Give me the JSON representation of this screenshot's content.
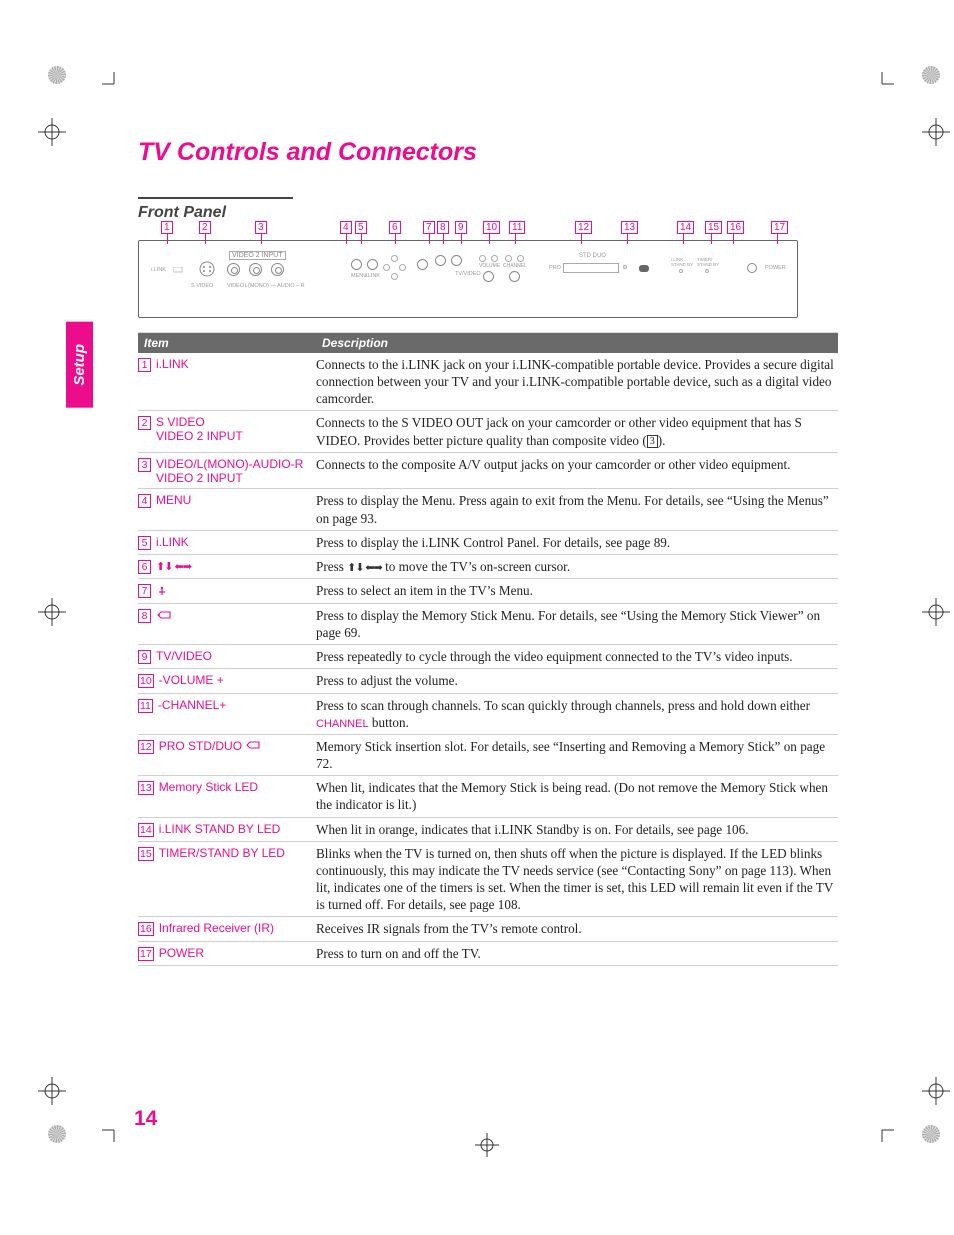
{
  "colors": {
    "accent": "#ec0d8c",
    "header_bg": "#6a6a6a",
    "text": "#222222",
    "rule": "#cfcfcf"
  },
  "page_number": "14",
  "title": "TV Controls and Connectors",
  "section": "Front Panel",
  "side_tab": "Setup",
  "table_header": {
    "item": "Item",
    "desc": "Description"
  },
  "diagram": {
    "video2_input": "VIDEO 2 INPUT",
    "ilink": "i.LINK",
    "svideo": "S VIDEO",
    "video": "VIDEO",
    "audio": "L(MONO) — AUDIO – R",
    "menu": "MENU",
    "ilink2": "i.LINK",
    "tv_video": "TV/VIDEO",
    "volume": "VOLUME",
    "channel": "CHANNEL",
    "pro": "PRO",
    "std_duo": "STD DUO",
    "link_sb": "i.LINK\nSTAND BY",
    "timer_sb": "TIMER/\nSTAND BY",
    "power": "POWER"
  },
  "callouts": [
    "1",
    "2",
    "3",
    "4",
    "5",
    "6",
    "7",
    "8",
    "9",
    "10",
    "11",
    "12",
    "13",
    "14",
    "15",
    "16",
    "17"
  ],
  "rows": [
    {
      "num": "1",
      "label": "i.LINK",
      "desc": "Connects to the i.LINK jack on your i.LINK-compatible portable device. Provides a secure digital connection between your TV and your i.LINK-compatible portable device, such as a digital video camcorder."
    },
    {
      "num": "2",
      "label": "S VIDEO\nVIDEO 2 INPUT",
      "desc_html": "Connects to the S VIDEO OUT jack on your camcorder or other video equipment that has S VIDEO. Provides better picture quality than composite video (<span class='num-box-inline'>3</span>)."
    },
    {
      "num": "3",
      "label": "VIDEO/L(MONO)-AUDIO-R\nVIDEO 2 INPUT",
      "desc": "Connects to the composite A/V output jacks on your camcorder or other video equipment."
    },
    {
      "num": "4",
      "label": "MENU",
      "desc": "Press to display the Menu. Press again to exit from the Menu. For details, see “Using the Menus” on page 93."
    },
    {
      "num": "5",
      "label": "i.LINK",
      "desc": "Press to display the i.LINK Control Panel. For details, see page 89."
    },
    {
      "num": "6",
      "label_html": "<span class='arrow-sym'>⬆⬇ ⬅➡</span>",
      "desc_html": "Press <span class='arrow-sym-dark'>⬆⬇ ⬅➡</span> to move the TV’s on-screen cursor."
    },
    {
      "num": "7",
      "label_html": "<span class='dot-icon'><svg width='12' height='12'><circle cx='6' cy='4' r='1.2' fill='#ec0d8c'/><line x1='6' y1='5' x2='6' y2='11' stroke='#ec0d8c' stroke-width='1.2'/><line x1='3' y1='8' x2='9' y2='8' stroke='#ec0d8c' stroke-width='1.2'/></svg></span>",
      "desc": "Press to select an item in the TV’s Menu."
    },
    {
      "num": "8",
      "label_html": "<span class='ms-icon'><svg width='16' height='12'><path d='M2 6 L5 3 L14 3 L14 9 L5 9 Z' fill='none' stroke='#ec0d8c' stroke-width='1.1'/><path d='M2 6 L4 6' stroke='#ec0d8c' stroke-width='1'/></svg></span>",
      "desc": "Press to display the Memory Stick Menu. For details, see “Using the Memory Stick Viewer” on page 69."
    },
    {
      "num": "9",
      "label": "TV/VIDEO",
      "desc": "Press repeatedly to cycle through the video equipment connected to the TV’s video inputs."
    },
    {
      "num": "10",
      "label": "-VOLUME +",
      "desc": "Press to adjust the volume."
    },
    {
      "num": "11",
      "label": "-CHANNEL+",
      "desc_html": "Press to scan through channels. To scan quickly through channels, press and hold down either <span class='channel-word'>CHANNEL</span> button."
    },
    {
      "num": "12",
      "label_html": "PRO STD/DUO <span class='ms-icon'><svg width='16' height='10'><path d='M2 5 L5 2 L14 2 L14 8 L5 8 Z' fill='none' stroke='#ec0d8c' stroke-width='1.1'/></svg></span>",
      "desc": "Memory Stick insertion slot. For details, see “Inserting and Removing a Memory Stick” on page 72."
    },
    {
      "num": "13",
      "label": "Memory Stick LED",
      "desc": "When lit, indicates that the Memory Stick is being read. (Do not remove the Memory Stick when the indicator is lit.)"
    },
    {
      "num": "14",
      "label": "i.LINK STAND BY LED",
      "desc": "When lit in orange, indicates that i.LINK Standby is on. For details, see page 106."
    },
    {
      "num": "15",
      "label": "TIMER/STAND BY LED",
      "desc": "Blinks when the TV is turned on, then shuts off when the picture is displayed. If the LED blinks continuously, this may indicate the TV needs service (see “Contacting Sony” on page 113). When lit, indicates one of the timers is set. When the timer is set, this LED will remain lit even if the TV is turned off. For details, see page 108."
    },
    {
      "num": "16",
      "label": "Infrared Receiver (IR)",
      "desc": "Receives IR signals from the TV’s remote control."
    },
    {
      "num": "17",
      "label": "POWER",
      "desc": "Press to turn on and off the TV."
    }
  ]
}
